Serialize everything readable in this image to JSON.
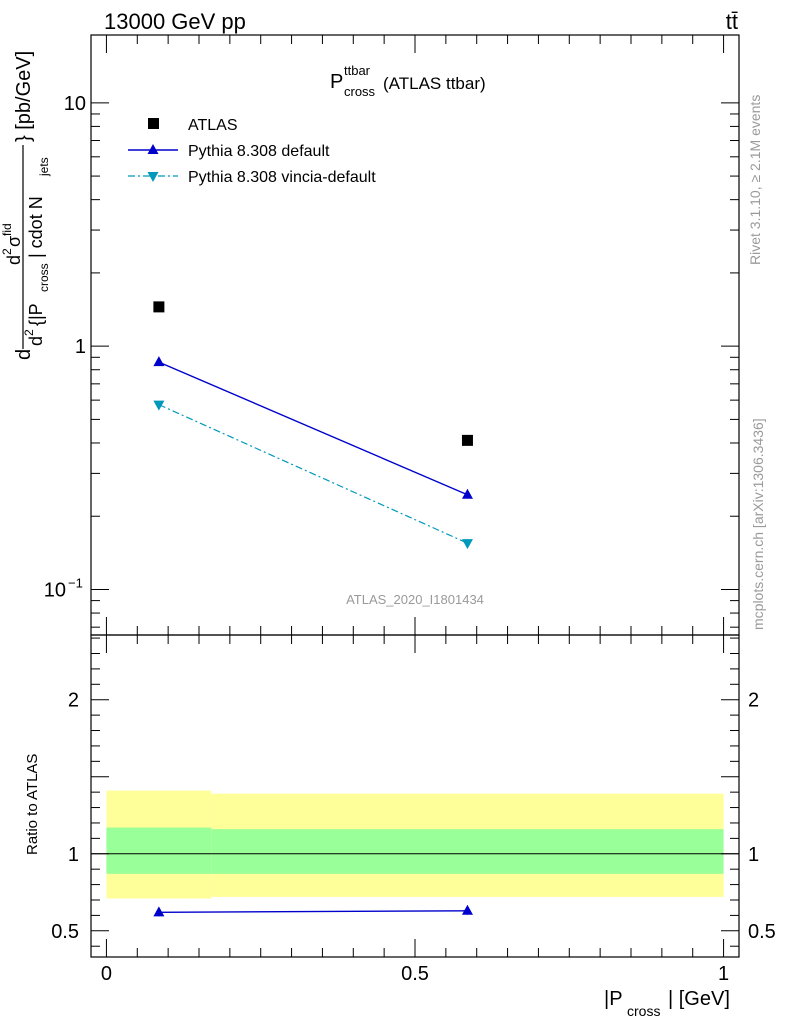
{
  "header": {
    "left": "13000 GeV pp",
    "right": "tt̄"
  },
  "plot": {
    "title_main": "P",
    "title_sup": "ttbar",
    "title_sub": "cross",
    "title_rest": "(ATLAS ttbar)",
    "watermark": "ATLAS_2020_I1801434",
    "side_text_top": "Rivet 3.1.10, ≥ 2.1M events",
    "side_text_bottom": "mcplots.cern.ch [arXiv:1306.3436]",
    "ylabel": "d²σ^fid / d²{|P_cross| cdot N_jets} [pb/GeV]",
    "ylabel_parts": {
      "d": "d",
      "sq": "2",
      "sigma": "σ",
      "fid": "fid",
      "denom_a": "d",
      "denom_b": "{|P",
      "cross": "cross",
      "denom_c": "| cdot N",
      "jets": "jets",
      "unit": "} [pb/GeV]"
    },
    "ratio_ylabel": "Ratio to ATLAS",
    "xlabel_a": "|P",
    "xlabel_sub": "cross",
    "xlabel_b": "| [GeV]",
    "top_ticks": [
      {
        "v": 10,
        "label": "10",
        "sup": ""
      },
      {
        "v": 1,
        "label": "1",
        "sup": ""
      },
      {
        "v": 0.1,
        "label": "10",
        "sup": "−1"
      }
    ],
    "ratio_ticks": [
      {
        "v": 2,
        "label": "2"
      },
      {
        "v": 1,
        "label": "1"
      },
      {
        "v": 0.5,
        "label": "0.5"
      }
    ],
    "x_ticks": [
      {
        "v": 0,
        "label": "0"
      },
      {
        "v": 0.5,
        "label": "0.5"
      },
      {
        "v": 1,
        "label": "1"
      }
    ]
  },
  "legend": [
    {
      "name": "ATLAS",
      "color": "#000000",
      "marker": "square",
      "line": "none"
    },
    {
      "name": "Pythia 8.308 default",
      "color": "#0000cc",
      "marker": "triangle-up",
      "line": "solid"
    },
    {
      "name": "Pythia 8.308 vincia-default",
      "color": "#0099bb",
      "marker": "triangle-down",
      "line": "dashdot"
    }
  ],
  "chart_data": {
    "type": "line",
    "x": [
      0.085,
      0.585
    ],
    "xlim": [
      -0.025,
      1.025
    ],
    "ylim": [
      0.065,
      19
    ],
    "log_y": true,
    "series": [
      {
        "name": "ATLAS",
        "values": [
          1.45,
          0.41
        ],
        "color": "#000000"
      },
      {
        "name": "Pythia 8.308 default",
        "values": [
          0.86,
          0.245
        ],
        "color": "#0000cc"
      },
      {
        "name": "Pythia 8.308 vincia-default",
        "values": [
          0.575,
          0.155
        ],
        "color": "#0099bb"
      }
    ],
    "ratio": {
      "ylim": [
        0.33,
        2.42
      ],
      "series": [
        {
          "name": "Pythia 8.308 default",
          "values": [
            0.62,
            0.63
          ],
          "errors": [
            0.025,
            0.025
          ],
          "color": "#0000cc"
        }
      ],
      "bands": [
        {
          "x0": 0.0,
          "x1": 0.17,
          "yellow": [
            0.71,
            1.41
          ],
          "green": [
            0.87,
            1.17
          ]
        },
        {
          "x0": 0.17,
          "x1": 1.0,
          "yellow": [
            0.72,
            1.39
          ],
          "green": [
            0.87,
            1.16
          ]
        }
      ]
    }
  },
  "colors": {
    "band_yellow": "#ffff99",
    "band_green": "#99ff99",
    "frame": "#000000"
  }
}
